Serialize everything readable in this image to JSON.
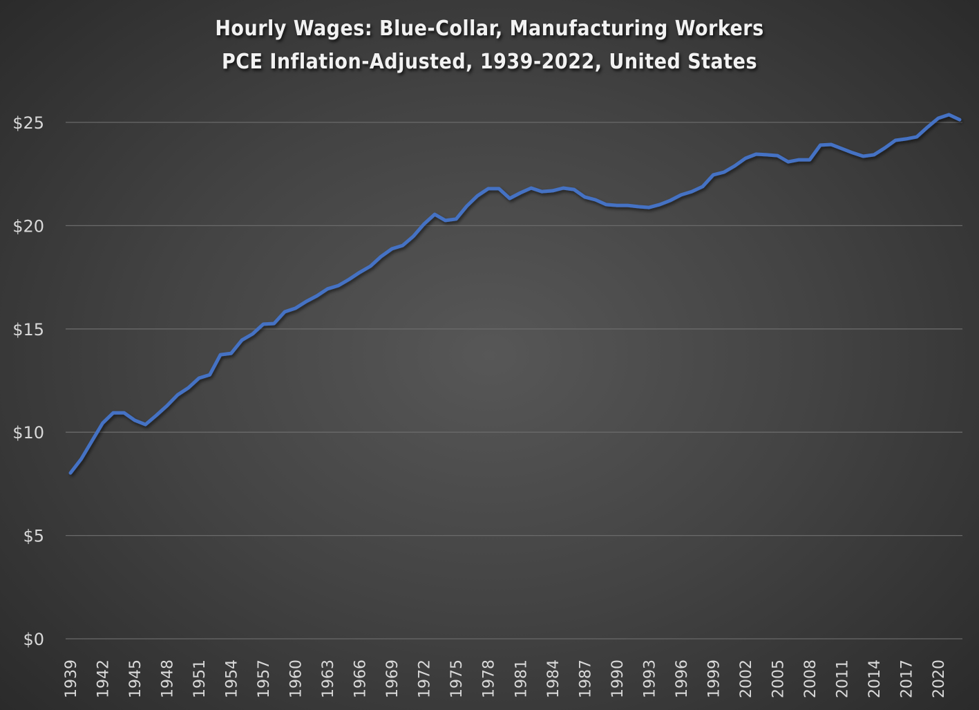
{
  "chart_data": {
    "type": "line",
    "title": "Hourly Wages: Blue-Collar, Manufacturing Workers",
    "subtitle": "PCE Inflation-Adjusted, 1939-2022, United States",
    "xlabel": "",
    "ylabel": "",
    "ylim": [
      0,
      25
    ],
    "yticks": [
      "$0",
      "$5",
      "$10",
      "$15",
      "$20",
      "$25"
    ],
    "ytick_values": [
      0,
      5,
      10,
      15,
      20,
      25
    ],
    "xticks": [
      "1939",
      "1942",
      "1945",
      "1948",
      "1951",
      "1954",
      "1957",
      "1960",
      "1963",
      "1966",
      "1969",
      "1972",
      "1975",
      "1978",
      "1981",
      "1984",
      "1987",
      "1990",
      "1993",
      "1996",
      "1999",
      "2002",
      "2005",
      "2008",
      "2011",
      "2014",
      "2017",
      "2020"
    ],
    "grid": "horizontal",
    "legend": "none",
    "line_color": "#4472c4",
    "x": [
      1939,
      1940,
      1941,
      1942,
      1943,
      1944,
      1945,
      1946,
      1947,
      1948,
      1949,
      1950,
      1951,
      1952,
      1953,
      1954,
      1955,
      1956,
      1957,
      1958,
      1959,
      1960,
      1961,
      1962,
      1963,
      1964,
      1965,
      1966,
      1967,
      1968,
      1969,
      1970,
      1971,
      1972,
      1973,
      1974,
      1975,
      1976,
      1977,
      1978,
      1979,
      1980,
      1981,
      1982,
      1983,
      1984,
      1985,
      1986,
      1987,
      1988,
      1989,
      1990,
      1991,
      1992,
      1993,
      1994,
      1995,
      1996,
      1997,
      1998,
      1999,
      2000,
      2001,
      2002,
      2003,
      2004,
      2005,
      2006,
      2007,
      2008,
      2009,
      2010,
      2011,
      2012,
      2013,
      2014,
      2015,
      2016,
      2017,
      2018,
      2019,
      2020,
      2021,
      2022
    ],
    "series": [
      {
        "name": "Hourly Wage (PCE-adjusted)",
        "values": [
          8.03,
          8.7,
          9.57,
          10.44,
          10.94,
          10.94,
          10.58,
          10.37,
          10.81,
          11.28,
          11.81,
          12.15,
          12.62,
          12.78,
          13.75,
          13.82,
          14.46,
          14.76,
          15.23,
          15.26,
          15.83,
          16.0,
          16.33,
          16.6,
          16.94,
          17.1,
          17.4,
          17.74,
          18.04,
          18.51,
          18.88,
          19.04,
          19.48,
          20.08,
          20.55,
          20.25,
          20.32,
          20.95,
          21.45,
          21.79,
          21.79,
          21.32,
          21.59,
          21.82,
          21.65,
          21.69,
          21.82,
          21.75,
          21.39,
          21.25,
          21.02,
          20.98,
          20.98,
          20.92,
          20.88,
          21.02,
          21.22,
          21.49,
          21.65,
          21.89,
          22.46,
          22.59,
          22.89,
          23.26,
          23.46,
          23.43,
          23.39,
          23.09,
          23.19,
          23.19,
          23.9,
          23.93,
          23.73,
          23.53,
          23.36,
          23.43,
          23.76,
          24.13,
          24.2,
          24.3,
          24.77,
          25.2,
          25.37,
          25.13
        ]
      }
    ]
  }
}
